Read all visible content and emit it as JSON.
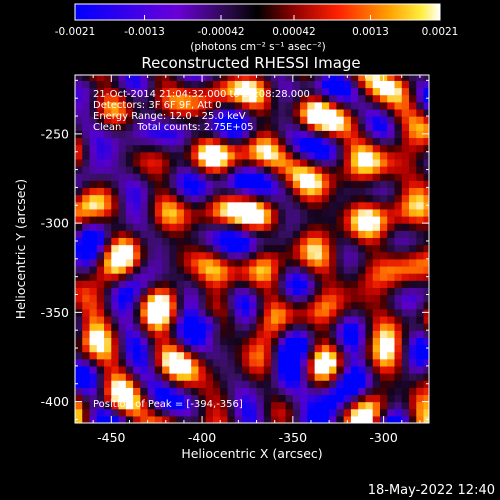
{
  "chart_data": {
    "type": "heatmap",
    "title": "Reconstructed RHESSI Image",
    "xlabel": "Heliocentric X (arcsec)",
    "ylabel": "Heliocentric Y (arcsec)",
    "xlim": [
      -470,
      -275
    ],
    "ylim": [
      -412,
      -217
    ],
    "x_ticks": [
      "-450",
      "-400",
      "-350",
      "-300"
    ],
    "x_tick_values": [
      -450,
      -400,
      -350,
      -300
    ],
    "y_ticks": [
      "-250",
      "-300",
      "-350",
      "-400"
    ],
    "y_tick_values": [
      -250,
      -300,
      -350,
      -400
    ],
    "colorbar": {
      "ticks": [
        "-0.0021",
        "-0.0013",
        "-0.00042",
        "0.00042",
        "0.0013",
        "0.0021"
      ],
      "tick_values": [
        -0.0021,
        -0.0013,
        -0.00042,
        0.00042,
        0.0013,
        0.0021
      ],
      "range": [
        -0.0021,
        0.0021
      ],
      "unit_label": "(photons cm⁻² s⁻¹ asec⁻²)"
    },
    "annotations": {
      "time": "21-Oct-2014 21:04:32.000 to 21:08:28.000",
      "detectors": "Detectors: 3F 6F 9F, Att 0",
      "energy": "Energy Range: 12.0 - 25.0 keV",
      "clean": "Clean     Total counts: 2.75E+05",
      "peak": "Position of Peak = [-394,-356]"
    },
    "peak": [
      -394,
      -356
    ],
    "colors": {
      "scale": [
        "#0000ff",
        "#5a00c8",
        "#32105a",
        "#000000",
        "#7a0000",
        "#e40000",
        "#ff8000",
        "#ffd000",
        "#ffffff"
      ],
      "cell_size_arcsec": 4
    }
  },
  "footer": {
    "date": "18-May-2022 12:40"
  }
}
